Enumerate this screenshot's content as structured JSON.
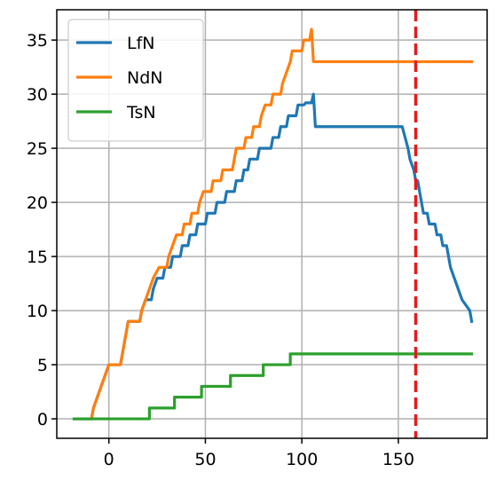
{
  "chart_data": {
    "type": "line",
    "title": "",
    "xlabel": "",
    "ylabel": "",
    "xlim": [
      -27,
      196
    ],
    "ylim": [
      -1.8,
      37.8
    ],
    "xticks": [
      0,
      50,
      100,
      150
    ],
    "yticks": [
      0,
      5,
      10,
      15,
      20,
      25,
      30,
      35
    ],
    "grid": true,
    "legend": {
      "placement": "top-left",
      "entries": [
        "LfN",
        "NdN",
        "TsN"
      ]
    },
    "vline": {
      "x": 159,
      "color": "#e41a1c",
      "style": "dashed"
    },
    "series": [
      {
        "name": "LfN",
        "color": "#1f77b4",
        "points": [
          [
            -18,
            0
          ],
          [
            -9,
            0
          ],
          [
            -8,
            1
          ],
          [
            -6,
            2
          ],
          [
            -4,
            3
          ],
          [
            -2,
            4
          ],
          [
            0,
            5
          ],
          [
            6,
            5
          ],
          [
            7,
            6
          ],
          [
            8,
            7
          ],
          [
            9,
            8
          ],
          [
            10,
            9
          ],
          [
            16,
            9
          ],
          [
            17,
            10
          ],
          [
            19,
            11
          ],
          [
            22,
            11
          ],
          [
            23,
            12
          ],
          [
            25,
            13
          ],
          [
            28,
            13
          ],
          [
            29,
            14
          ],
          [
            32,
            14
          ],
          [
            33,
            15
          ],
          [
            37,
            15
          ],
          [
            38,
            16
          ],
          [
            41,
            16
          ],
          [
            42,
            17
          ],
          [
            45,
            17
          ],
          [
            46,
            18
          ],
          [
            50,
            18
          ],
          [
            51,
            19
          ],
          [
            55,
            19
          ],
          [
            56,
            20
          ],
          [
            60,
            20
          ],
          [
            61,
            21
          ],
          [
            65,
            21
          ],
          [
            66,
            22
          ],
          [
            69,
            22
          ],
          [
            70,
            23
          ],
          [
            72,
            23
          ],
          [
            73,
            24
          ],
          [
            77,
            24
          ],
          [
            78,
            25
          ],
          [
            84,
            25
          ],
          [
            85,
            26
          ],
          [
            88,
            26
          ],
          [
            89,
            27
          ],
          [
            92,
            27
          ],
          [
            93,
            28
          ],
          [
            97,
            28
          ],
          [
            98,
            29
          ],
          [
            101,
            29
          ],
          [
            102,
            29.2
          ],
          [
            105,
            29.2
          ],
          [
            106,
            30
          ],
          [
            107,
            27
          ],
          [
            152,
            27
          ],
          [
            155,
            25
          ],
          [
            156,
            24
          ],
          [
            157,
            23.5
          ],
          [
            158,
            23
          ],
          [
            159,
            22
          ],
          [
            160,
            22
          ],
          [
            161,
            21
          ],
          [
            162,
            20
          ],
          [
            163,
            19
          ],
          [
            165,
            19
          ],
          [
            166,
            18
          ],
          [
            169,
            18
          ],
          [
            170,
            17
          ],
          [
            172,
            17
          ],
          [
            173,
            16
          ],
          [
            175,
            16
          ],
          [
            176,
            15
          ],
          [
            177,
            14
          ],
          [
            179,
            13
          ],
          [
            181,
            12
          ],
          [
            183,
            11
          ],
          [
            185,
            10.5
          ],
          [
            187,
            10
          ],
          [
            188,
            9
          ]
        ]
      },
      {
        "name": "NdN",
        "color": "#ff7f0e",
        "points": [
          [
            -9,
            0
          ],
          [
            -8,
            1
          ],
          [
            -6,
            2
          ],
          [
            -4,
            3
          ],
          [
            -2,
            4
          ],
          [
            0,
            5
          ],
          [
            6,
            5
          ],
          [
            7,
            6
          ],
          [
            8,
            7
          ],
          [
            9,
            8
          ],
          [
            10,
            9
          ],
          [
            16,
            9
          ],
          [
            17,
            10
          ],
          [
            19,
            11
          ],
          [
            21,
            12
          ],
          [
            23,
            13
          ],
          [
            26,
            14
          ],
          [
            30,
            14
          ],
          [
            31,
            15
          ],
          [
            33,
            16
          ],
          [
            35,
            17
          ],
          [
            38,
            17
          ],
          [
            39,
            18
          ],
          [
            42,
            18
          ],
          [
            43,
            19
          ],
          [
            46,
            19
          ],
          [
            47,
            20
          ],
          [
            49,
            21
          ],
          [
            53,
            21
          ],
          [
            54,
            22
          ],
          [
            58,
            22
          ],
          [
            59,
            23
          ],
          [
            64,
            23
          ],
          [
            65,
            24
          ],
          [
            66,
            25
          ],
          [
            70,
            25
          ],
          [
            71,
            26
          ],
          [
            74,
            26
          ],
          [
            75,
            27
          ],
          [
            78,
            27
          ],
          [
            79,
            28
          ],
          [
            81,
            29
          ],
          [
            84,
            29
          ],
          [
            85,
            30
          ],
          [
            89,
            30
          ],
          [
            90,
            31
          ],
          [
            92,
            32
          ],
          [
            94,
            33
          ],
          [
            95,
            34
          ],
          [
            100,
            34
          ],
          [
            101,
            35
          ],
          [
            104,
            35
          ],
          [
            105,
            36
          ],
          [
            106,
            33
          ],
          [
            188,
            33
          ]
        ]
      },
      {
        "name": "TsN",
        "color": "#2ca02c",
        "points": [
          [
            -18,
            0
          ],
          [
            21,
            0
          ],
          [
            21,
            1
          ],
          [
            34,
            1
          ],
          [
            34,
            2
          ],
          [
            48,
            2
          ],
          [
            48,
            3
          ],
          [
            63,
            3
          ],
          [
            63,
            4
          ],
          [
            80,
            4
          ],
          [
            80,
            5
          ],
          [
            94,
            5
          ],
          [
            94,
            6
          ],
          [
            188,
            6
          ]
        ]
      }
    ]
  }
}
